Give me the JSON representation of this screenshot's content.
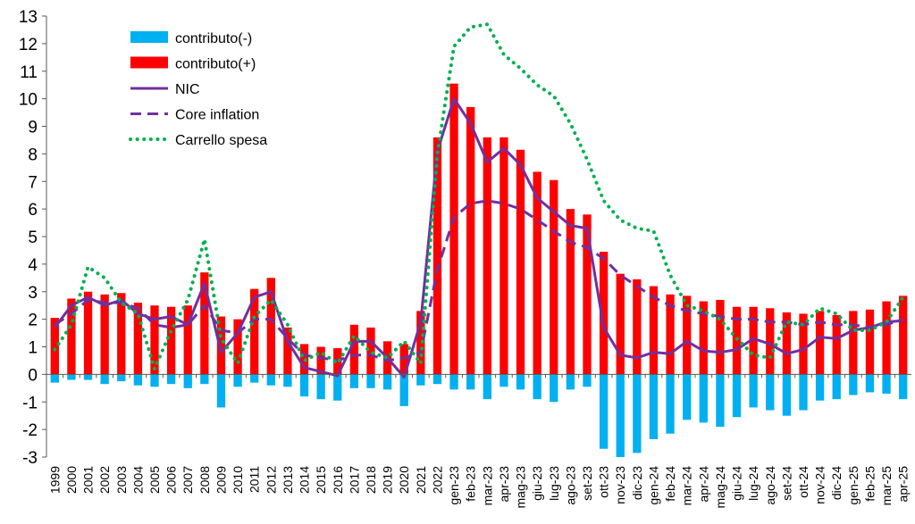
{
  "chart_data": {
    "type": "bar",
    "title": "",
    "xlabel": "",
    "ylabel": "",
    "ylim": [
      -3,
      13
    ],
    "yticks": [
      -3,
      -2,
      -1,
      0,
      1,
      2,
      3,
      4,
      5,
      6,
      7,
      8,
      9,
      10,
      11,
      12,
      13
    ],
    "grid": false,
    "legend_position": "top-left",
    "categories": [
      "1999",
      "2000",
      "2001",
      "2002",
      "2003",
      "2004",
      "2005",
      "2006",
      "2007",
      "2008",
      "2009",
      "2010",
      "2011",
      "2012",
      "2013",
      "2014",
      "2015",
      "2016",
      "2017",
      "2018",
      "2019",
      "2020",
      "2021",
      "2022",
      "gen-23",
      "feb-23",
      "mar-23",
      "apr-23",
      "mag-23",
      "giu-23",
      "lug-23",
      "ago-23",
      "set-23",
      "ott-23",
      "nov-23",
      "dic-23",
      "gen-24",
      "feb-24",
      "mar-24",
      "apr-24",
      "mag-24",
      "giu-24",
      "lug-24",
      "ago-24",
      "set-24",
      "ott-24",
      "nov-24",
      "dic-24",
      "gen-25",
      "feb-25",
      "mar-25",
      "apr-25"
    ],
    "series": [
      {
        "name": "contributo(-)",
        "kind": "bar",
        "color": "#00b0f0",
        "values": [
          -0.3,
          -0.2,
          -0.2,
          -0.35,
          -0.25,
          -0.4,
          -0.45,
          -0.35,
          -0.5,
          -0.35,
          -1.2,
          -0.45,
          -0.3,
          -0.4,
          -0.45,
          -0.8,
          -0.9,
          -0.95,
          -0.5,
          -0.5,
          -0.55,
          -1.15,
          -0.4,
          -0.35,
          -0.55,
          -0.55,
          -0.9,
          -0.45,
          -0.55,
          -0.9,
          -1.0,
          -0.55,
          -0.45,
          -2.7,
          -3.0,
          -2.85,
          -2.35,
          -2.15,
          -1.65,
          -1.75,
          -1.9,
          -1.55,
          -1.2,
          -1.3,
          -1.5,
          -1.3,
          -0.95,
          -0.9,
          -0.75,
          -0.65,
          -0.7,
          -0.9
        ]
      },
      {
        "name": "contributo(+)",
        "kind": "bar",
        "color": "#ff0000",
        "values": [
          2.05,
          2.75,
          3.0,
          2.9,
          2.95,
          2.6,
          2.5,
          2.45,
          2.5,
          3.7,
          2.1,
          2.0,
          3.1,
          3.5,
          1.7,
          1.1,
          1.0,
          0.95,
          1.8,
          1.7,
          1.2,
          1.1,
          2.3,
          8.6,
          10.55,
          9.7,
          8.6,
          8.6,
          8.15,
          7.35,
          7.05,
          6.0,
          5.8,
          4.45,
          3.65,
          3.45,
          3.2,
          2.9,
          2.85,
          2.65,
          2.7,
          2.45,
          2.45,
          2.4,
          2.25,
          2.2,
          2.3,
          2.15,
          2.3,
          2.35,
          2.65,
          2.85
        ]
      },
      {
        "name": "NIC",
        "kind": "line",
        "style": "solid",
        "color": "#7030a0",
        "values": [
          1.7,
          2.5,
          2.8,
          2.5,
          2.7,
          2.2,
          2.0,
          2.1,
          1.8,
          3.3,
          0.8,
          1.5,
          2.8,
          3.0,
          1.2,
          0.25,
          0.1,
          -0.05,
          1.2,
          1.2,
          0.6,
          -0.1,
          1.9,
          8.1,
          10.0,
          9.1,
          7.7,
          8.2,
          7.6,
          6.4,
          5.9,
          5.4,
          5.3,
          1.7,
          0.7,
          0.6,
          0.8,
          0.75,
          1.2,
          0.85,
          0.8,
          0.9,
          1.3,
          1.1,
          0.75,
          0.9,
          1.35,
          1.3,
          1.6,
          1.7,
          1.9,
          1.95
        ]
      },
      {
        "name": "Core inflation",
        "kind": "line",
        "style": "dashed",
        "color": "#7030a0",
        "values": [
          1.8,
          2.2,
          2.7,
          2.6,
          2.6,
          2.4,
          1.8,
          1.7,
          1.8,
          2.5,
          1.6,
          1.5,
          2.0,
          2.0,
          1.3,
          0.7,
          0.6,
          0.5,
          0.7,
          0.7,
          0.5,
          0.6,
          0.8,
          3.8,
          5.7,
          6.2,
          6.3,
          6.2,
          6.0,
          5.6,
          5.2,
          4.8,
          4.6,
          4.2,
          3.6,
          3.2,
          2.8,
          2.5,
          2.3,
          2.2,
          2.1,
          2.0,
          2.0,
          1.9,
          1.9,
          1.8,
          1.9,
          1.8,
          1.8,
          1.7,
          1.8,
          2.0
        ]
      },
      {
        "name": "Carrello spesa",
        "kind": "line",
        "style": "dotted",
        "color": "#00b050",
        "values": [
          0.9,
          1.8,
          3.9,
          3.5,
          2.6,
          2.2,
          0.2,
          1.6,
          2.7,
          4.9,
          1.3,
          0.4,
          2.1,
          2.7,
          1.8,
          0.5,
          0.8,
          0.4,
          1.4,
          0.8,
          0.6,
          1.2,
          0.4,
          8.0,
          11.9,
          12.6,
          12.7,
          11.6,
          11.1,
          10.5,
          10.1,
          9.1,
          7.8,
          6.3,
          5.6,
          5.3,
          5.2,
          3.6,
          2.5,
          2.3,
          2.0,
          1.3,
          0.7,
          0.6,
          1.9,
          1.8,
          2.4,
          2.2,
          1.6,
          1.6,
          1.9,
          2.8
        ]
      }
    ]
  }
}
